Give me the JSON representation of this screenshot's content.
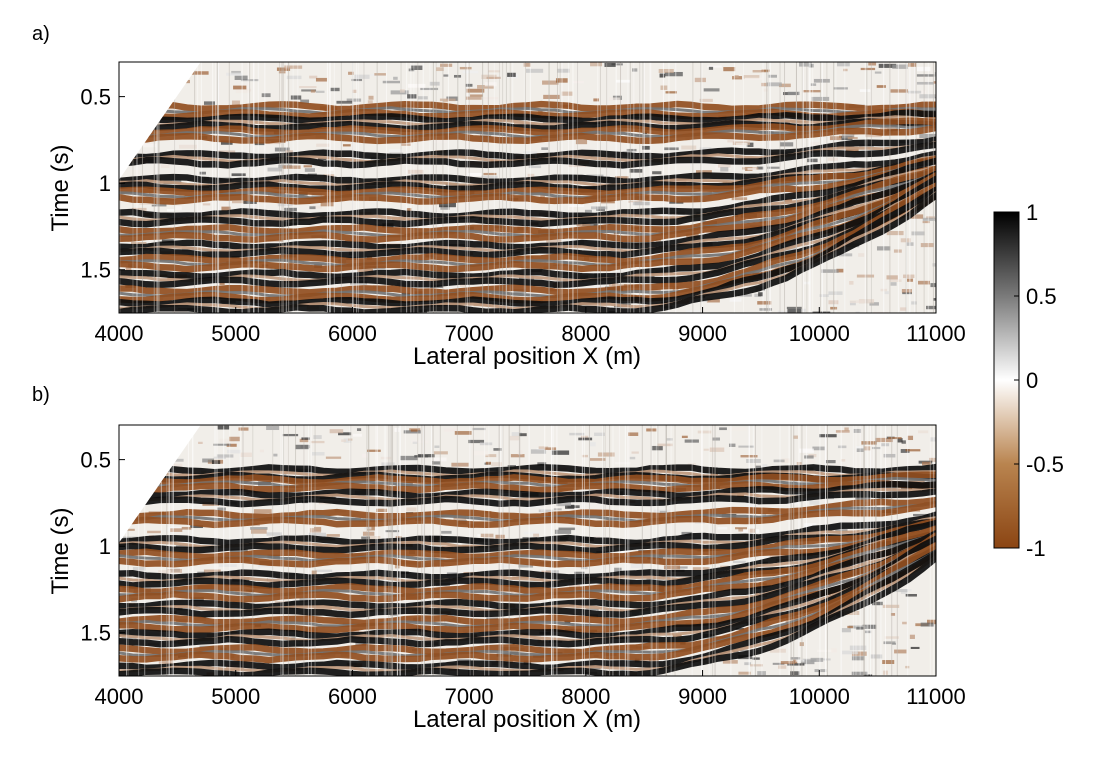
{
  "chart_data": [
    {
      "type": "heatmap",
      "panel_label": "a)",
      "xlabel": "Lateral position X (m)",
      "ylabel": "Time (s)",
      "xlim": [
        4000,
        11000
      ],
      "ylim": [
        0.3,
        1.75
      ],
      "y_direction": "down",
      "x_ticks": [
        4000,
        5000,
        6000,
        7000,
        8000,
        9000,
        10000,
        11000
      ],
      "y_ticks": [
        0.5,
        1,
        1.5
      ],
      "y_tick_labels": [
        "0.5",
        "1",
        "1.5"
      ],
      "reflectors": [
        {
          "t_start": 0.58,
          "slope": 0.0,
          "polarity": -1
        },
        {
          "t_start": 0.65,
          "slope": -0.02,
          "polarity": 1
        },
        {
          "t_start": 0.72,
          "slope": -0.05,
          "polarity": -1
        },
        {
          "t_start": 0.86,
          "slope": -0.08,
          "polarity": 1
        },
        {
          "t_start": 1.0,
          "slope": -0.12,
          "polarity": 1
        },
        {
          "t_start": 1.07,
          "slope": -0.15,
          "polarity": -1
        },
        {
          "t_start": 1.2,
          "slope": -0.25,
          "polarity": 1
        },
        {
          "t_start": 1.29,
          "slope": -0.3,
          "polarity": -1
        },
        {
          "t_start": 1.38,
          "slope": -0.35,
          "polarity": 1
        },
        {
          "t_start": 1.46,
          "slope": -0.4,
          "polarity": -1
        },
        {
          "t_start": 1.55,
          "slope": -0.45,
          "polarity": 1
        },
        {
          "t_start": 1.64,
          "slope": -0.5,
          "polarity": -1
        },
        {
          "t_start": 1.71,
          "slope": -0.55,
          "polarity": 1
        }
      ]
    },
    {
      "type": "heatmap",
      "panel_label": "b)",
      "xlabel": "Lateral position X (m)",
      "ylabel": "Time (s)",
      "xlim": [
        4000,
        11000
      ],
      "ylim": [
        0.3,
        1.75
      ],
      "y_direction": "down",
      "x_ticks": [
        4000,
        5000,
        6000,
        7000,
        8000,
        9000,
        10000,
        11000
      ],
      "y_ticks": [
        0.5,
        1,
        1.5
      ],
      "y_tick_labels": [
        "0.5",
        "1",
        "1.5"
      ],
      "reflectors": [
        {
          "t_start": 0.58,
          "slope": 0.0,
          "polarity": 1
        },
        {
          "t_start": 0.64,
          "slope": -0.02,
          "polarity": -1
        },
        {
          "t_start": 0.72,
          "slope": -0.05,
          "polarity": 1
        },
        {
          "t_start": 0.84,
          "slope": -0.08,
          "polarity": -1
        },
        {
          "t_start": 0.99,
          "slope": -0.12,
          "polarity": 1
        },
        {
          "t_start": 1.07,
          "slope": -0.15,
          "polarity": -1
        },
        {
          "t_start": 1.19,
          "slope": -0.25,
          "polarity": 1
        },
        {
          "t_start": 1.27,
          "slope": -0.3,
          "polarity": -1
        },
        {
          "t_start": 1.36,
          "slope": -0.35,
          "polarity": 1
        },
        {
          "t_start": 1.45,
          "slope": -0.4,
          "polarity": -1
        },
        {
          "t_start": 1.53,
          "slope": -0.45,
          "polarity": 1
        },
        {
          "t_start": 1.62,
          "slope": -0.5,
          "polarity": -1
        },
        {
          "t_start": 1.71,
          "slope": -0.55,
          "polarity": 1
        }
      ]
    }
  ],
  "colorbar": {
    "range": [
      -1,
      1
    ],
    "ticks": [
      1,
      0.5,
      0,
      -0.5,
      -1
    ],
    "tick_labels": [
      "1",
      "0.5",
      "0",
      "-0.5",
      "-1"
    ],
    "colors": {
      "max": "#000000",
      "mid": "#ffffff",
      "min": "#8b4513"
    }
  }
}
